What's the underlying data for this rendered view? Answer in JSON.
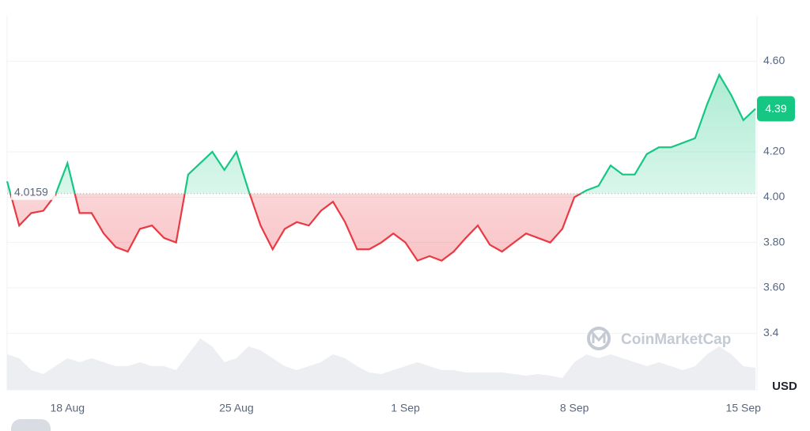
{
  "chart_data": {
    "type": "line",
    "categories": [
      null,
      null,
      null,
      null,
      null,
      "18 Aug",
      null,
      null,
      null,
      null,
      null,
      null,
      null,
      null,
      null,
      null,
      null,
      null,
      null,
      "25 Aug",
      null,
      null,
      null,
      null,
      null,
      null,
      null,
      null,
      null,
      null,
      null,
      null,
      null,
      "1 Sep",
      null,
      null,
      null,
      null,
      null,
      null,
      null,
      null,
      null,
      null,
      null,
      null,
      null,
      "8 Sep",
      null,
      null,
      null,
      null,
      null,
      null,
      null,
      null,
      null,
      null,
      null,
      null,
      null,
      "15 Sep",
      null
    ],
    "values": [
      4.07,
      3.875,
      3.93,
      3.94,
      4.01,
      4.15,
      3.93,
      3.93,
      3.84,
      3.78,
      3.76,
      3.86,
      3.875,
      3.82,
      3.8,
      4.1,
      4.15,
      4.2,
      4.12,
      4.2,
      4.03,
      3.875,
      3.77,
      3.86,
      3.89,
      3.875,
      3.94,
      3.98,
      3.89,
      3.77,
      3.77,
      3.8,
      3.84,
      3.8,
      3.72,
      3.74,
      3.72,
      3.76,
      3.82,
      3.875,
      3.79,
      3.76,
      3.8,
      3.84,
      3.82,
      3.8,
      3.86,
      4.0,
      4.03,
      4.05,
      4.14,
      4.1,
      4.1,
      4.19,
      4.22,
      4.22,
      4.24,
      4.26,
      4.41,
      4.54,
      4.45,
      4.34,
      4.39
    ],
    "volume": [
      45,
      40,
      25,
      20,
      30,
      40,
      35,
      40,
      35,
      30,
      30,
      35,
      30,
      30,
      25,
      45,
      65,
      55,
      35,
      40,
      55,
      50,
      40,
      30,
      25,
      30,
      35,
      45,
      40,
      30,
      22,
      20,
      25,
      30,
      35,
      30,
      25,
      25,
      22,
      22,
      22,
      22,
      20,
      18,
      20,
      18,
      15,
      35,
      45,
      40,
      45,
      40,
      35,
      30,
      35,
      30,
      25,
      30,
      45,
      55,
      45,
      30,
      28
    ],
    "baseline": 4.0159,
    "current_price": 4.39,
    "color_up": "#16c784",
    "color_down": "#ea3943",
    "ylim": [
      3.15,
      4.8
    ],
    "yticks": [
      3.4,
      {
        "value": 3.6,
        "label": "3.60"
      },
      {
        "value": 3.8,
        "label": "3.80"
      },
      {
        "value": 4,
        "label": "4.00"
      },
      {
        "value": 4.2,
        "label": "4.20"
      },
      {
        "value": 4.6,
        "label": "4.60"
      }
    ],
    "y_axis_label": "USD",
    "watermark": "CoinMarketCap",
    "grid": true
  }
}
